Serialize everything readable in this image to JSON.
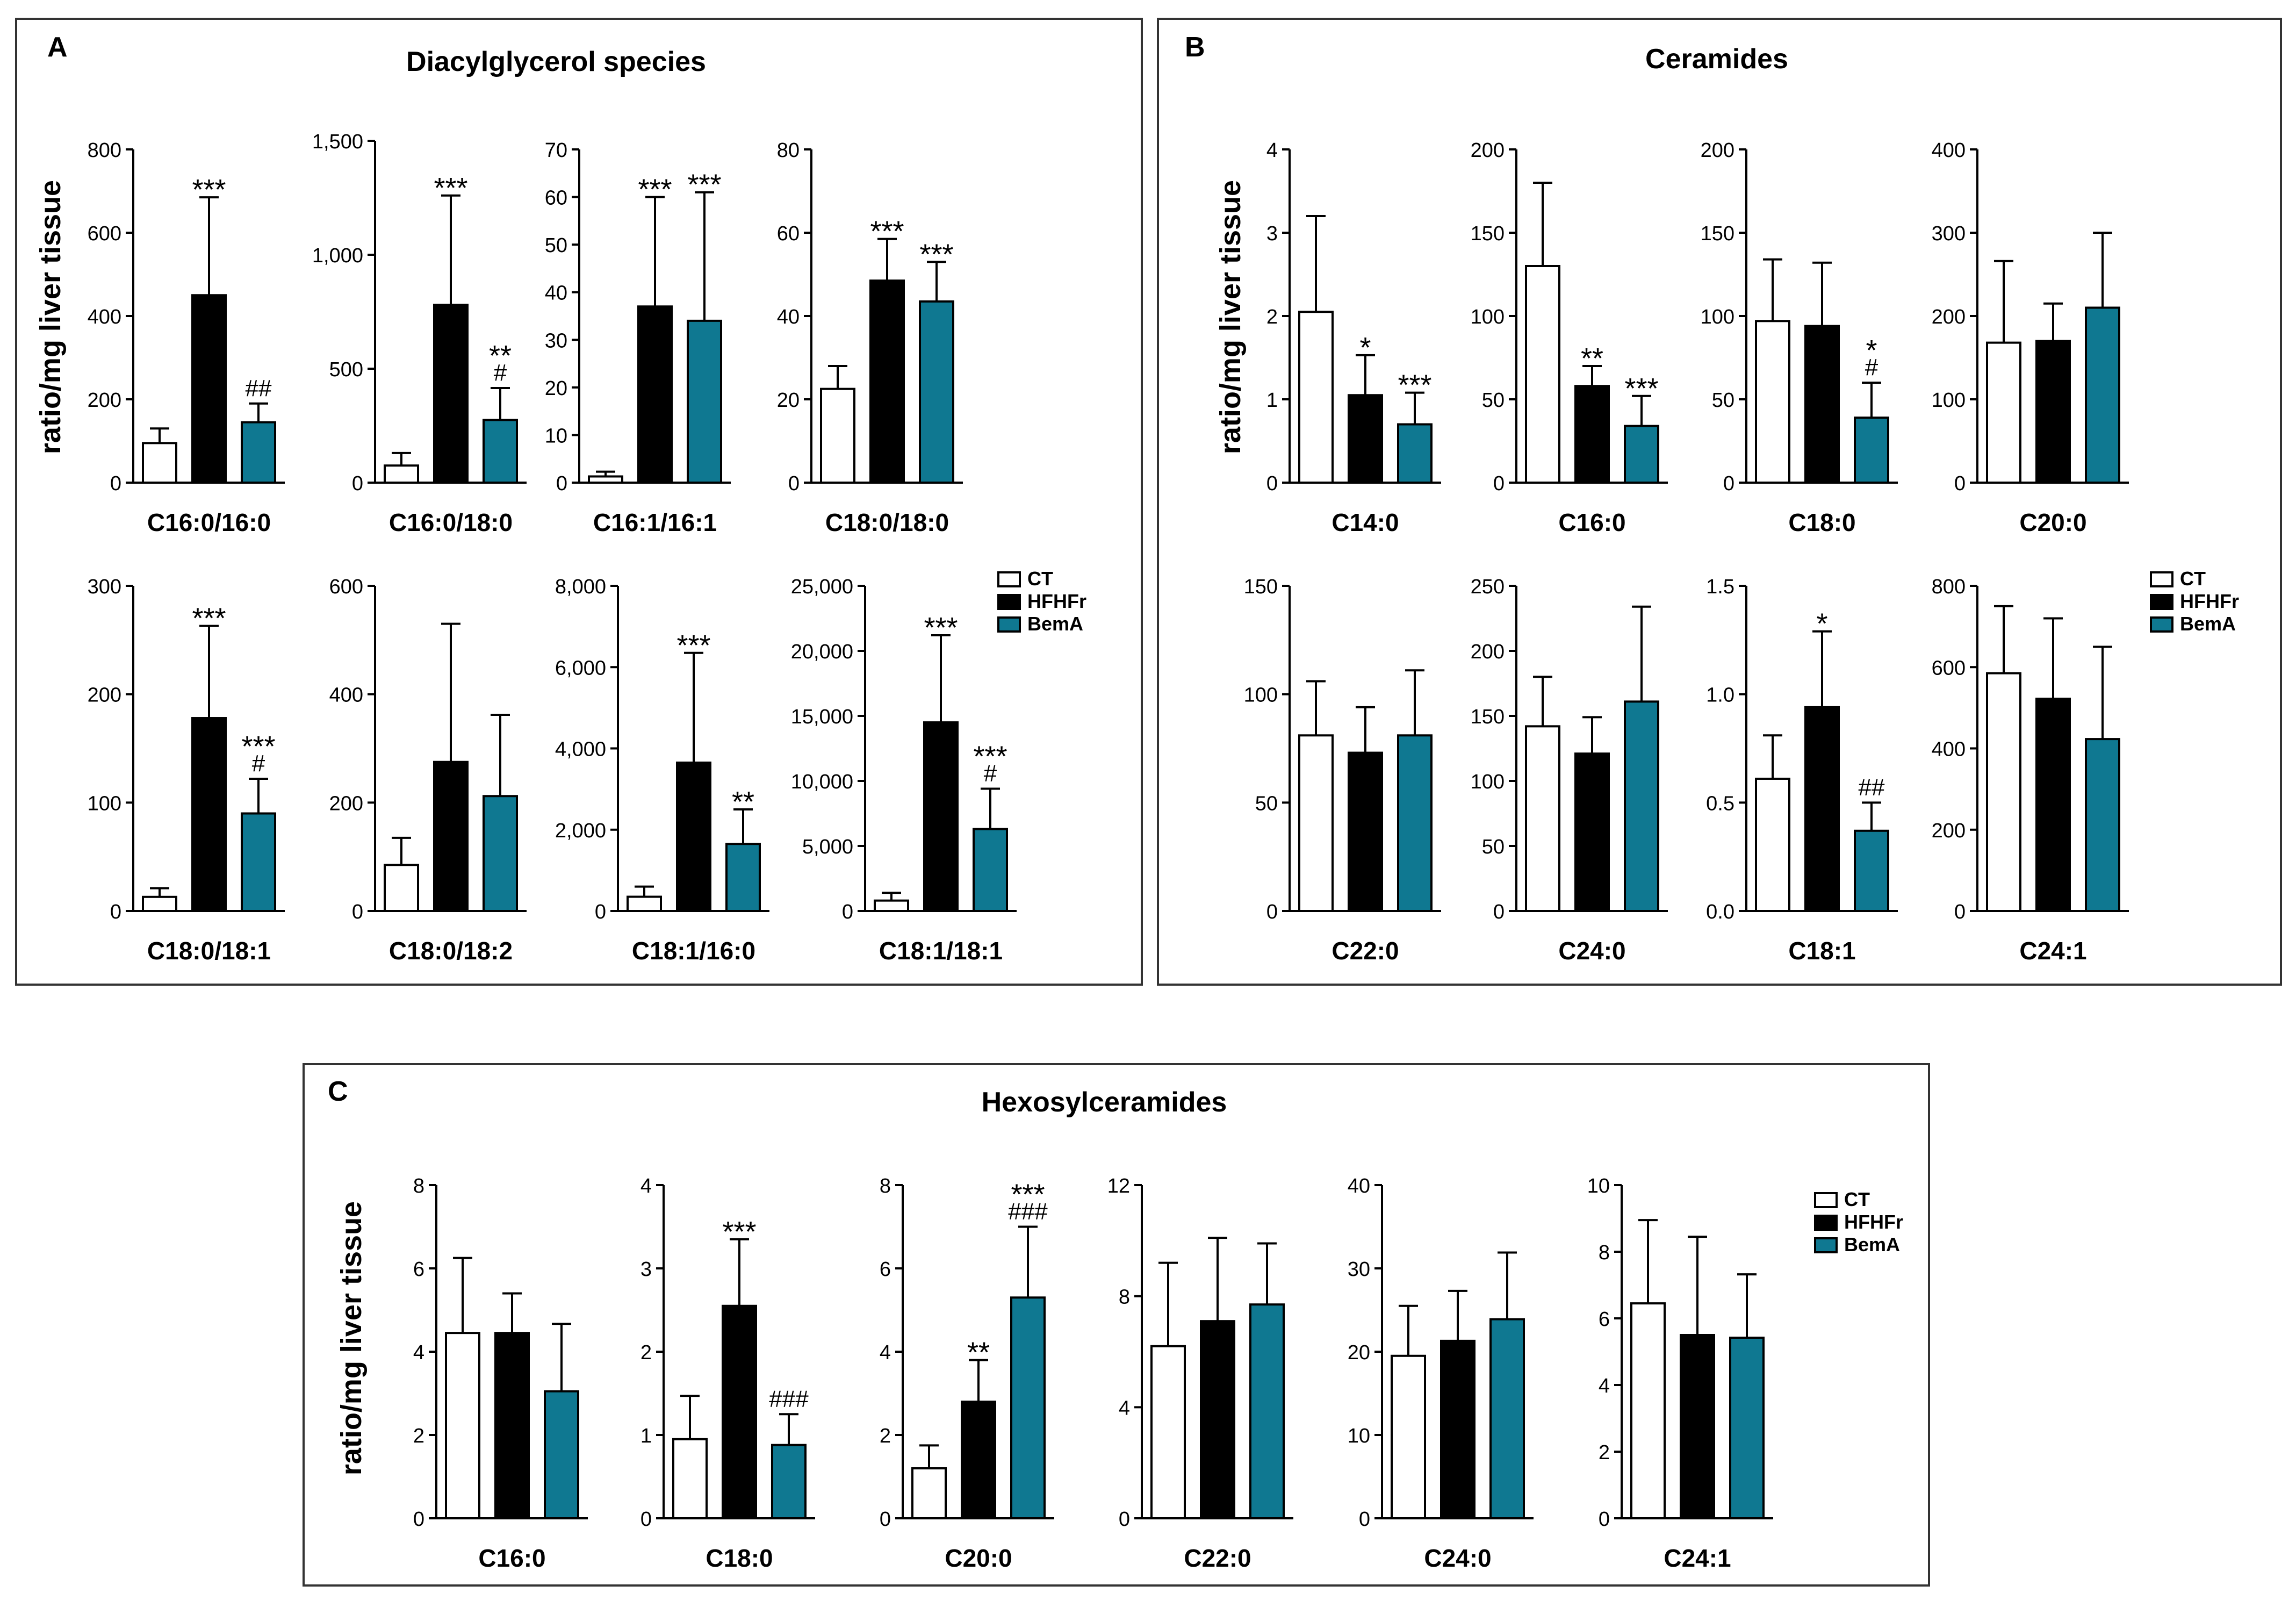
{
  "colors": {
    "CT": "#ffffff",
    "HFHFr": "#000000",
    "BemA": "#0f7891"
  },
  "legend": [
    "CT",
    "HFHFr",
    "BemA"
  ],
  "panels": [
    {
      "id": "panel-a",
      "letter": "A",
      "title": "Diacylglycerol species",
      "ylabel": "ratio/mg liver tissue"
    },
    {
      "id": "panel-b",
      "letter": "B",
      "title": "Ceramides",
      "ylabel": "ratio/mg liver tissue"
    },
    {
      "id": "panel-c",
      "letter": "C",
      "title": "Hexosylceramides",
      "ylabel": "ratio/mg liver tissue"
    }
  ],
  "chart_data": [
    {
      "panel": "A",
      "type": "bar",
      "xlabel": "C16:0/16:0",
      "ylim": [
        0,
        800
      ],
      "ticks": [
        0,
        200,
        400,
        600,
        800
      ],
      "tick_labels": [
        "0",
        "200",
        "400",
        "600",
        "800"
      ],
      "series": [
        {
          "name": "CT",
          "value": 95,
          "error": 35,
          "annotation": ""
        },
        {
          "name": "HFHFr",
          "value": 450,
          "error": 235,
          "annotation": "***"
        },
        {
          "name": "BemA",
          "value": 145,
          "error": 45,
          "annotation": "##"
        }
      ]
    },
    {
      "panel": "A",
      "type": "bar",
      "xlabel": "C16:0/18:0",
      "ylim": [
        0,
        1500
      ],
      "ticks": [
        0,
        500,
        1000,
        1500
      ],
      "tick_labels": [
        "0",
        "500",
        "1,000",
        "1,500"
      ],
      "series": [
        {
          "name": "CT",
          "value": 75,
          "error": 55,
          "annotation": ""
        },
        {
          "name": "HFHFr",
          "value": 780,
          "error": 480,
          "annotation": "***"
        },
        {
          "name": "BemA",
          "value": 275,
          "error": 140,
          "annotation": "**\n#"
        }
      ]
    },
    {
      "panel": "A",
      "type": "bar",
      "xlabel": "C16:1/16:1",
      "ylim": [
        0,
        70
      ],
      "ticks": [
        0,
        10,
        20,
        30,
        40,
        50,
        60,
        70
      ],
      "tick_labels": [
        "0",
        "10",
        "20",
        "30",
        "40",
        "50",
        "60",
        "70"
      ],
      "series": [
        {
          "name": "CT",
          "value": 1.3,
          "error": 1.0,
          "annotation": ""
        },
        {
          "name": "HFHFr",
          "value": 37,
          "error": 23,
          "annotation": "***"
        },
        {
          "name": "BemA",
          "value": 34,
          "error": 27,
          "annotation": "***"
        }
      ]
    },
    {
      "panel": "A",
      "type": "bar",
      "xlabel": "C18:0/18:0",
      "ylim": [
        0,
        80
      ],
      "ticks": [
        0,
        20,
        40,
        60,
        80
      ],
      "tick_labels": [
        "0",
        "20",
        "40",
        "60",
        "80"
      ],
      "series": [
        {
          "name": "CT",
          "value": 22.5,
          "error": 5.5,
          "annotation": ""
        },
        {
          "name": "HFHFr",
          "value": 48.5,
          "error": 10,
          "annotation": "***"
        },
        {
          "name": "BemA",
          "value": 43.5,
          "error": 9.5,
          "annotation": "***"
        }
      ]
    },
    {
      "panel": "A",
      "type": "bar",
      "xlabel": "C18:0/18:1",
      "ylim": [
        0,
        300
      ],
      "ticks": [
        0,
        100,
        200,
        300
      ],
      "tick_labels": [
        "0",
        "100",
        "200",
        "300"
      ],
      "series": [
        {
          "name": "CT",
          "value": 13,
          "error": 8,
          "annotation": ""
        },
        {
          "name": "HFHFr",
          "value": 178,
          "error": 85,
          "annotation": "***"
        },
        {
          "name": "BemA",
          "value": 90,
          "error": 32,
          "annotation": "***\n#"
        }
      ]
    },
    {
      "panel": "A",
      "type": "bar",
      "xlabel": "C18:0/18:2",
      "ylim": [
        0,
        600
      ],
      "ticks": [
        0,
        200,
        400,
        600
      ],
      "tick_labels": [
        "0",
        "200",
        "400",
        "600"
      ],
      "series": [
        {
          "name": "CT",
          "value": 85,
          "error": 50,
          "annotation": ""
        },
        {
          "name": "HFHFr",
          "value": 275,
          "error": 255,
          "annotation": ""
        },
        {
          "name": "BemA",
          "value": 212,
          "error": 150,
          "annotation": ""
        }
      ]
    },
    {
      "panel": "A",
      "type": "bar",
      "xlabel": "C18:1/16:0",
      "ylim": [
        0,
        8000
      ],
      "ticks": [
        0,
        2000,
        4000,
        6000,
        8000
      ],
      "tick_labels": [
        "0",
        "2,000",
        "4,000",
        "6,000",
        "8,000"
      ],
      "series": [
        {
          "name": "CT",
          "value": 350,
          "error": 250,
          "annotation": ""
        },
        {
          "name": "HFHFr",
          "value": 3650,
          "error": 2700,
          "annotation": "***"
        },
        {
          "name": "BemA",
          "value": 1650,
          "error": 850,
          "annotation": "**"
        }
      ]
    },
    {
      "panel": "A",
      "type": "bar",
      "xlabel": "C18:1/18:1",
      "ylim": [
        0,
        25000
      ],
      "ticks": [
        0,
        5000,
        10000,
        15000,
        20000,
        25000
      ],
      "tick_labels": [
        "0",
        "5,000",
        "10,000",
        "15,000",
        "20,000",
        "25,000"
      ],
      "series": [
        {
          "name": "CT",
          "value": 800,
          "error": 600,
          "annotation": ""
        },
        {
          "name": "HFHFr",
          "value": 14500,
          "error": 6700,
          "annotation": "***"
        },
        {
          "name": "BemA",
          "value": 6300,
          "error": 3100,
          "annotation": "***\n#"
        }
      ]
    },
    {
      "panel": "B",
      "type": "bar",
      "xlabel": "C14:0",
      "ylim": [
        0,
        4
      ],
      "ticks": [
        0,
        1,
        2,
        3,
        4
      ],
      "tick_labels": [
        "0",
        "1",
        "2",
        "3",
        "4"
      ],
      "series": [
        {
          "name": "CT",
          "value": 2.05,
          "error": 1.15,
          "annotation": ""
        },
        {
          "name": "HFHFr",
          "value": 1.05,
          "error": 0.48,
          "annotation": "*"
        },
        {
          "name": "BemA",
          "value": 0.7,
          "error": 0.38,
          "annotation": "***"
        }
      ]
    },
    {
      "panel": "B",
      "type": "bar",
      "xlabel": "C16:0",
      "ylim": [
        0,
        200
      ],
      "ticks": [
        0,
        50,
        100,
        150,
        200
      ],
      "tick_labels": [
        "0",
        "50",
        "100",
        "150",
        "200"
      ],
      "series": [
        {
          "name": "CT",
          "value": 130,
          "error": 50,
          "annotation": ""
        },
        {
          "name": "HFHFr",
          "value": 58,
          "error": 12,
          "annotation": "**"
        },
        {
          "name": "BemA",
          "value": 34,
          "error": 18,
          "annotation": "***"
        }
      ]
    },
    {
      "panel": "B",
      "type": "bar",
      "xlabel": "C18:0",
      "ylim": [
        0,
        200
      ],
      "ticks": [
        0,
        50,
        100,
        150,
        200
      ],
      "tick_labels": [
        "0",
        "50",
        "100",
        "150",
        "200"
      ],
      "series": [
        {
          "name": "CT",
          "value": 97,
          "error": 37,
          "annotation": ""
        },
        {
          "name": "HFHFr",
          "value": 94,
          "error": 38,
          "annotation": ""
        },
        {
          "name": "BemA",
          "value": 39,
          "error": 21,
          "annotation": "*\n#"
        }
      ]
    },
    {
      "panel": "B",
      "type": "bar",
      "xlabel": "C20:0",
      "ylim": [
        0,
        400
      ],
      "ticks": [
        0,
        100,
        200,
        300,
        400
      ],
      "tick_labels": [
        "0",
        "100",
        "200",
        "300",
        "400"
      ],
      "series": [
        {
          "name": "CT",
          "value": 168,
          "error": 98,
          "annotation": ""
        },
        {
          "name": "HFHFr",
          "value": 170,
          "error": 45,
          "annotation": ""
        },
        {
          "name": "BemA",
          "value": 210,
          "error": 90,
          "annotation": ""
        }
      ]
    },
    {
      "panel": "B",
      "type": "bar",
      "xlabel": "C22:0",
      "ylim": [
        0,
        150
      ],
      "ticks": [
        0,
        50,
        100,
        150
      ],
      "tick_labels": [
        "0",
        "50",
        "100",
        "150"
      ],
      "series": [
        {
          "name": "CT",
          "value": 81,
          "error": 25,
          "annotation": ""
        },
        {
          "name": "HFHFr",
          "value": 73,
          "error": 21,
          "annotation": ""
        },
        {
          "name": "BemA",
          "value": 81,
          "error": 30,
          "annotation": ""
        }
      ]
    },
    {
      "panel": "B",
      "type": "bar",
      "xlabel": "C24:0",
      "ylim": [
        0,
        250
      ],
      "ticks": [
        0,
        50,
        100,
        150,
        200,
        250
      ],
      "tick_labels": [
        "0",
        "50",
        "100",
        "150",
        "200",
        "250"
      ],
      "series": [
        {
          "name": "CT",
          "value": 142,
          "error": 38,
          "annotation": ""
        },
        {
          "name": "HFHFr",
          "value": 121,
          "error": 28,
          "annotation": ""
        },
        {
          "name": "BemA",
          "value": 161,
          "error": 73,
          "annotation": ""
        }
      ]
    },
    {
      "panel": "B",
      "type": "bar",
      "xlabel": "C18:1",
      "ylim": [
        0,
        1.5
      ],
      "ticks": [
        0,
        0.5,
        1.0,
        1.5
      ],
      "tick_labels": [
        "0.0",
        "0.5",
        "1.0",
        "1.5"
      ],
      "series": [
        {
          "name": "CT",
          "value": 0.61,
          "error": 0.2,
          "annotation": ""
        },
        {
          "name": "HFHFr",
          "value": 0.94,
          "error": 0.35,
          "annotation": "*"
        },
        {
          "name": "BemA",
          "value": 0.37,
          "error": 0.13,
          "annotation": "##"
        }
      ]
    },
    {
      "panel": "B",
      "type": "bar",
      "xlabel": "C24:1",
      "ylim": [
        0,
        800
      ],
      "ticks": [
        0,
        200,
        400,
        600,
        800
      ],
      "tick_labels": [
        "0",
        "200",
        "400",
        "600",
        "800"
      ],
      "series": [
        {
          "name": "CT",
          "value": 585,
          "error": 165,
          "annotation": ""
        },
        {
          "name": "HFHFr",
          "value": 522,
          "error": 198,
          "annotation": ""
        },
        {
          "name": "BemA",
          "value": 423,
          "error": 227,
          "annotation": ""
        }
      ]
    },
    {
      "panel": "C",
      "type": "bar",
      "xlabel": "C16:0",
      "ylim": [
        0,
        8
      ],
      "ticks": [
        0,
        2,
        4,
        6,
        8
      ],
      "tick_labels": [
        "0",
        "2",
        "4",
        "6",
        "8"
      ],
      "series": [
        {
          "name": "CT",
          "value": 4.45,
          "error": 1.8,
          "annotation": ""
        },
        {
          "name": "HFHFr",
          "value": 4.45,
          "error": 0.95,
          "annotation": ""
        },
        {
          "name": "BemA",
          "value": 3.05,
          "error": 1.62,
          "annotation": ""
        }
      ]
    },
    {
      "panel": "C",
      "type": "bar",
      "xlabel": "C18:0",
      "ylim": [
        0,
        4
      ],
      "ticks": [
        0,
        1,
        2,
        3,
        4
      ],
      "tick_labels": [
        "0",
        "1",
        "2",
        "3",
        "4"
      ],
      "series": [
        {
          "name": "CT",
          "value": 0.95,
          "error": 0.52,
          "annotation": ""
        },
        {
          "name": "HFHFr",
          "value": 2.55,
          "error": 0.8,
          "annotation": "***"
        },
        {
          "name": "BemA",
          "value": 0.88,
          "error": 0.37,
          "annotation": "###"
        }
      ]
    },
    {
      "panel": "C",
      "type": "bar",
      "xlabel": "C20:0",
      "ylim": [
        0,
        8
      ],
      "ticks": [
        0,
        2,
        4,
        6,
        8
      ],
      "tick_labels": [
        "0",
        "2",
        "4",
        "6",
        "8"
      ],
      "series": [
        {
          "name": "CT",
          "value": 1.2,
          "error": 0.55,
          "annotation": ""
        },
        {
          "name": "HFHFr",
          "value": 2.8,
          "error": 1.0,
          "annotation": "**"
        },
        {
          "name": "BemA",
          "value": 5.3,
          "error": 1.7,
          "annotation": "***\n###"
        }
      ]
    },
    {
      "panel": "C",
      "type": "bar",
      "xlabel": "C22:0",
      "ylim": [
        0,
        12
      ],
      "ticks": [
        0,
        4,
        8,
        12
      ],
      "tick_labels": [
        "0",
        "4",
        "8",
        "12"
      ],
      "series": [
        {
          "name": "CT",
          "value": 6.2,
          "error": 3.0,
          "annotation": ""
        },
        {
          "name": "HFHFr",
          "value": 7.1,
          "error": 3.0,
          "annotation": ""
        },
        {
          "name": "BemA",
          "value": 7.7,
          "error": 2.2,
          "annotation": ""
        }
      ]
    },
    {
      "panel": "C",
      "type": "bar",
      "xlabel": "C24:0",
      "ylim": [
        0,
        40
      ],
      "ticks": [
        0,
        10,
        20,
        30,
        40
      ],
      "tick_labels": [
        "0",
        "10",
        "20",
        "30",
        "40"
      ],
      "series": [
        {
          "name": "CT",
          "value": 19.5,
          "error": 6.0,
          "annotation": ""
        },
        {
          "name": "HFHFr",
          "value": 21.3,
          "error": 6.0,
          "annotation": ""
        },
        {
          "name": "BemA",
          "value": 23.9,
          "error": 8.0,
          "annotation": ""
        }
      ]
    },
    {
      "panel": "C",
      "type": "bar",
      "xlabel": "C24:1",
      "ylim": [
        0,
        10
      ],
      "ticks": [
        0,
        2,
        4,
        6,
        8,
        10
      ],
      "tick_labels": [
        "0",
        "2",
        "4",
        "6",
        "8",
        "10"
      ],
      "series": [
        {
          "name": "CT",
          "value": 6.45,
          "error": 2.5,
          "annotation": ""
        },
        {
          "name": "HFHFr",
          "value": 5.5,
          "error": 2.95,
          "annotation": ""
        },
        {
          "name": "BemA",
          "value": 5.42,
          "error": 1.9,
          "annotation": ""
        }
      ]
    }
  ]
}
